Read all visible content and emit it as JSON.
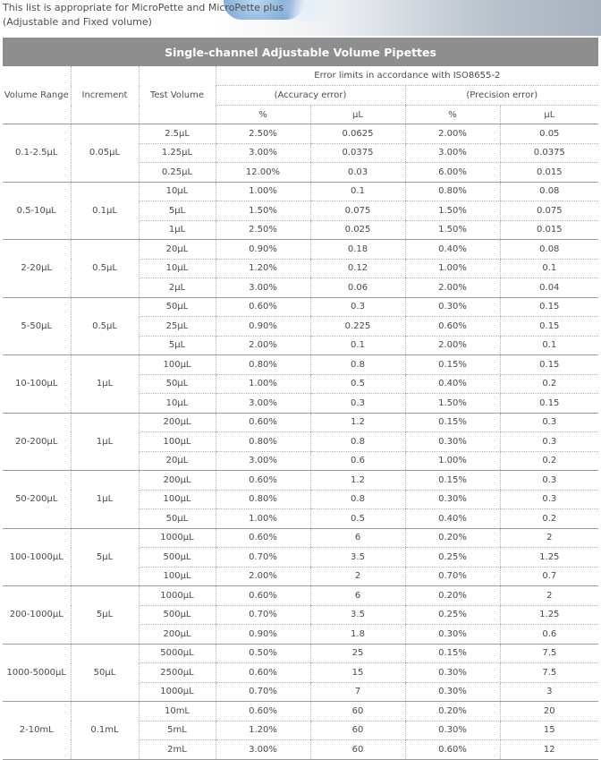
{
  "intro": {
    "line1": "This list is appropriate for MicroPette and MicroPette plus",
    "line2": "(Adjustable and Fixed volume)"
  },
  "table": {
    "title": "Single-channel Adjustable Volume Pipettes",
    "headers": {
      "volume_range": "Volume Range",
      "increment": "Increment",
      "test_volume": "Test Volume",
      "error_limits": "Error limits in accordance with ISO8655-2",
      "accuracy": "(Accuracy error)",
      "precision": "(Precision error)",
      "percent": "%",
      "ul": "μL"
    },
    "groups": [
      {
        "range": "0.1-2.5μL",
        "increment": "0.05μL",
        "rows": [
          [
            "2.5μL",
            "2.50%",
            "0.0625",
            "2.00%",
            "0.05"
          ],
          [
            "1.25μL",
            "3.00%",
            "0.0375",
            "3.00%",
            "0.0375"
          ],
          [
            "0.25μL",
            "12.00%",
            "0.03",
            "6.00%",
            "0.015"
          ]
        ]
      },
      {
        "range": "0.5-10μL",
        "increment": "0.1μL",
        "rows": [
          [
            "10μL",
            "1.00%",
            "0.1",
            "0.80%",
            "0.08"
          ],
          [
            "5μL",
            "1.50%",
            "0.075",
            "1.50%",
            "0.075"
          ],
          [
            "1μL",
            "2.50%",
            "0.025",
            "1.50%",
            "0.015"
          ]
        ]
      },
      {
        "range": "2-20μL",
        "increment": "0.5μL",
        "rows": [
          [
            "20μL",
            "0.90%",
            "0.18",
            "0.40%",
            "0.08"
          ],
          [
            "10μL",
            "1.20%",
            "0.12",
            "1.00%",
            "0.1"
          ],
          [
            "2μL",
            "3.00%",
            "0.06",
            "2.00%",
            "0.04"
          ]
        ]
      },
      {
        "range": "5-50μL",
        "increment": "0.5μL",
        "rows": [
          [
            "50μL",
            "0.60%",
            "0.3",
            "0.30%",
            "0.15"
          ],
          [
            "25μL",
            "0.90%",
            "0.225",
            "0.60%",
            "0.15"
          ],
          [
            "5μL",
            "2.00%",
            "0.1",
            "2.00%",
            "0.1"
          ]
        ]
      },
      {
        "range": "10-100μL",
        "increment": "1μL",
        "rows": [
          [
            "100μL",
            "0.80%",
            "0.8",
            "0.15%",
            "0.15"
          ],
          [
            "50μL",
            "1.00%",
            "0.5",
            "0.40%",
            "0.2"
          ],
          [
            "10μL",
            "3.00%",
            "0.3",
            "1.50%",
            "0.15"
          ]
        ]
      },
      {
        "range": "20-200μL",
        "increment": "1μL",
        "rows": [
          [
            "200μL",
            "0.60%",
            "1.2",
            "0.15%",
            "0.3"
          ],
          [
            "100μL",
            "0.80%",
            "0.8",
            "0.30%",
            "0.3"
          ],
          [
            "20μL",
            "3.00%",
            "0.6",
            "1.00%",
            "0.2"
          ]
        ]
      },
      {
        "range": "50-200μL",
        "increment": "1μL",
        "rows": [
          [
            "200μL",
            "0.60%",
            "1.2",
            "0.15%",
            "0.3"
          ],
          [
            "100μL",
            "0.80%",
            "0.8",
            "0.30%",
            "0.3"
          ],
          [
            "50μL",
            "1.00%",
            "0.5",
            "0.40%",
            "0.2"
          ]
        ]
      },
      {
        "range": "100-1000μL",
        "increment": "5μL",
        "rows": [
          [
            "1000μL",
            "0.60%",
            "6",
            "0.20%",
            "2"
          ],
          [
            "500μL",
            "0.70%",
            "3.5",
            "0.25%",
            "1.25"
          ],
          [
            "100μL",
            "2.00%",
            "2",
            "0.70%",
            "0.7"
          ]
        ]
      },
      {
        "range": "200-1000μL",
        "increment": "5μL",
        "rows": [
          [
            "1000μL",
            "0.60%",
            "6",
            "0.20%",
            "2"
          ],
          [
            "500μL",
            "0.70%",
            "3.5",
            "0.25%",
            "1.25"
          ],
          [
            "200μL",
            "0.90%",
            "1.8",
            "0.30%",
            "0.6"
          ]
        ]
      },
      {
        "range": "1000-5000μL",
        "increment": "50μL",
        "rows": [
          [
            "5000μL",
            "0.50%",
            "25",
            "0.15%",
            "7.5"
          ],
          [
            "2500μL",
            "0.60%",
            "15",
            "0.30%",
            "7.5"
          ],
          [
            "1000μL",
            "0.70%",
            "7",
            "0.30%",
            "3"
          ]
        ]
      },
      {
        "range": "2-10mL",
        "increment": "0.1mL",
        "rows": [
          [
            "10mL",
            "0.60%",
            "60",
            "0.20%",
            "20"
          ],
          [
            "5mL",
            "1.20%",
            "60",
            "0.30%",
            "15"
          ],
          [
            "2mL",
            "3.00%",
            "60",
            "0.60%",
            "12"
          ]
        ]
      }
    ]
  }
}
